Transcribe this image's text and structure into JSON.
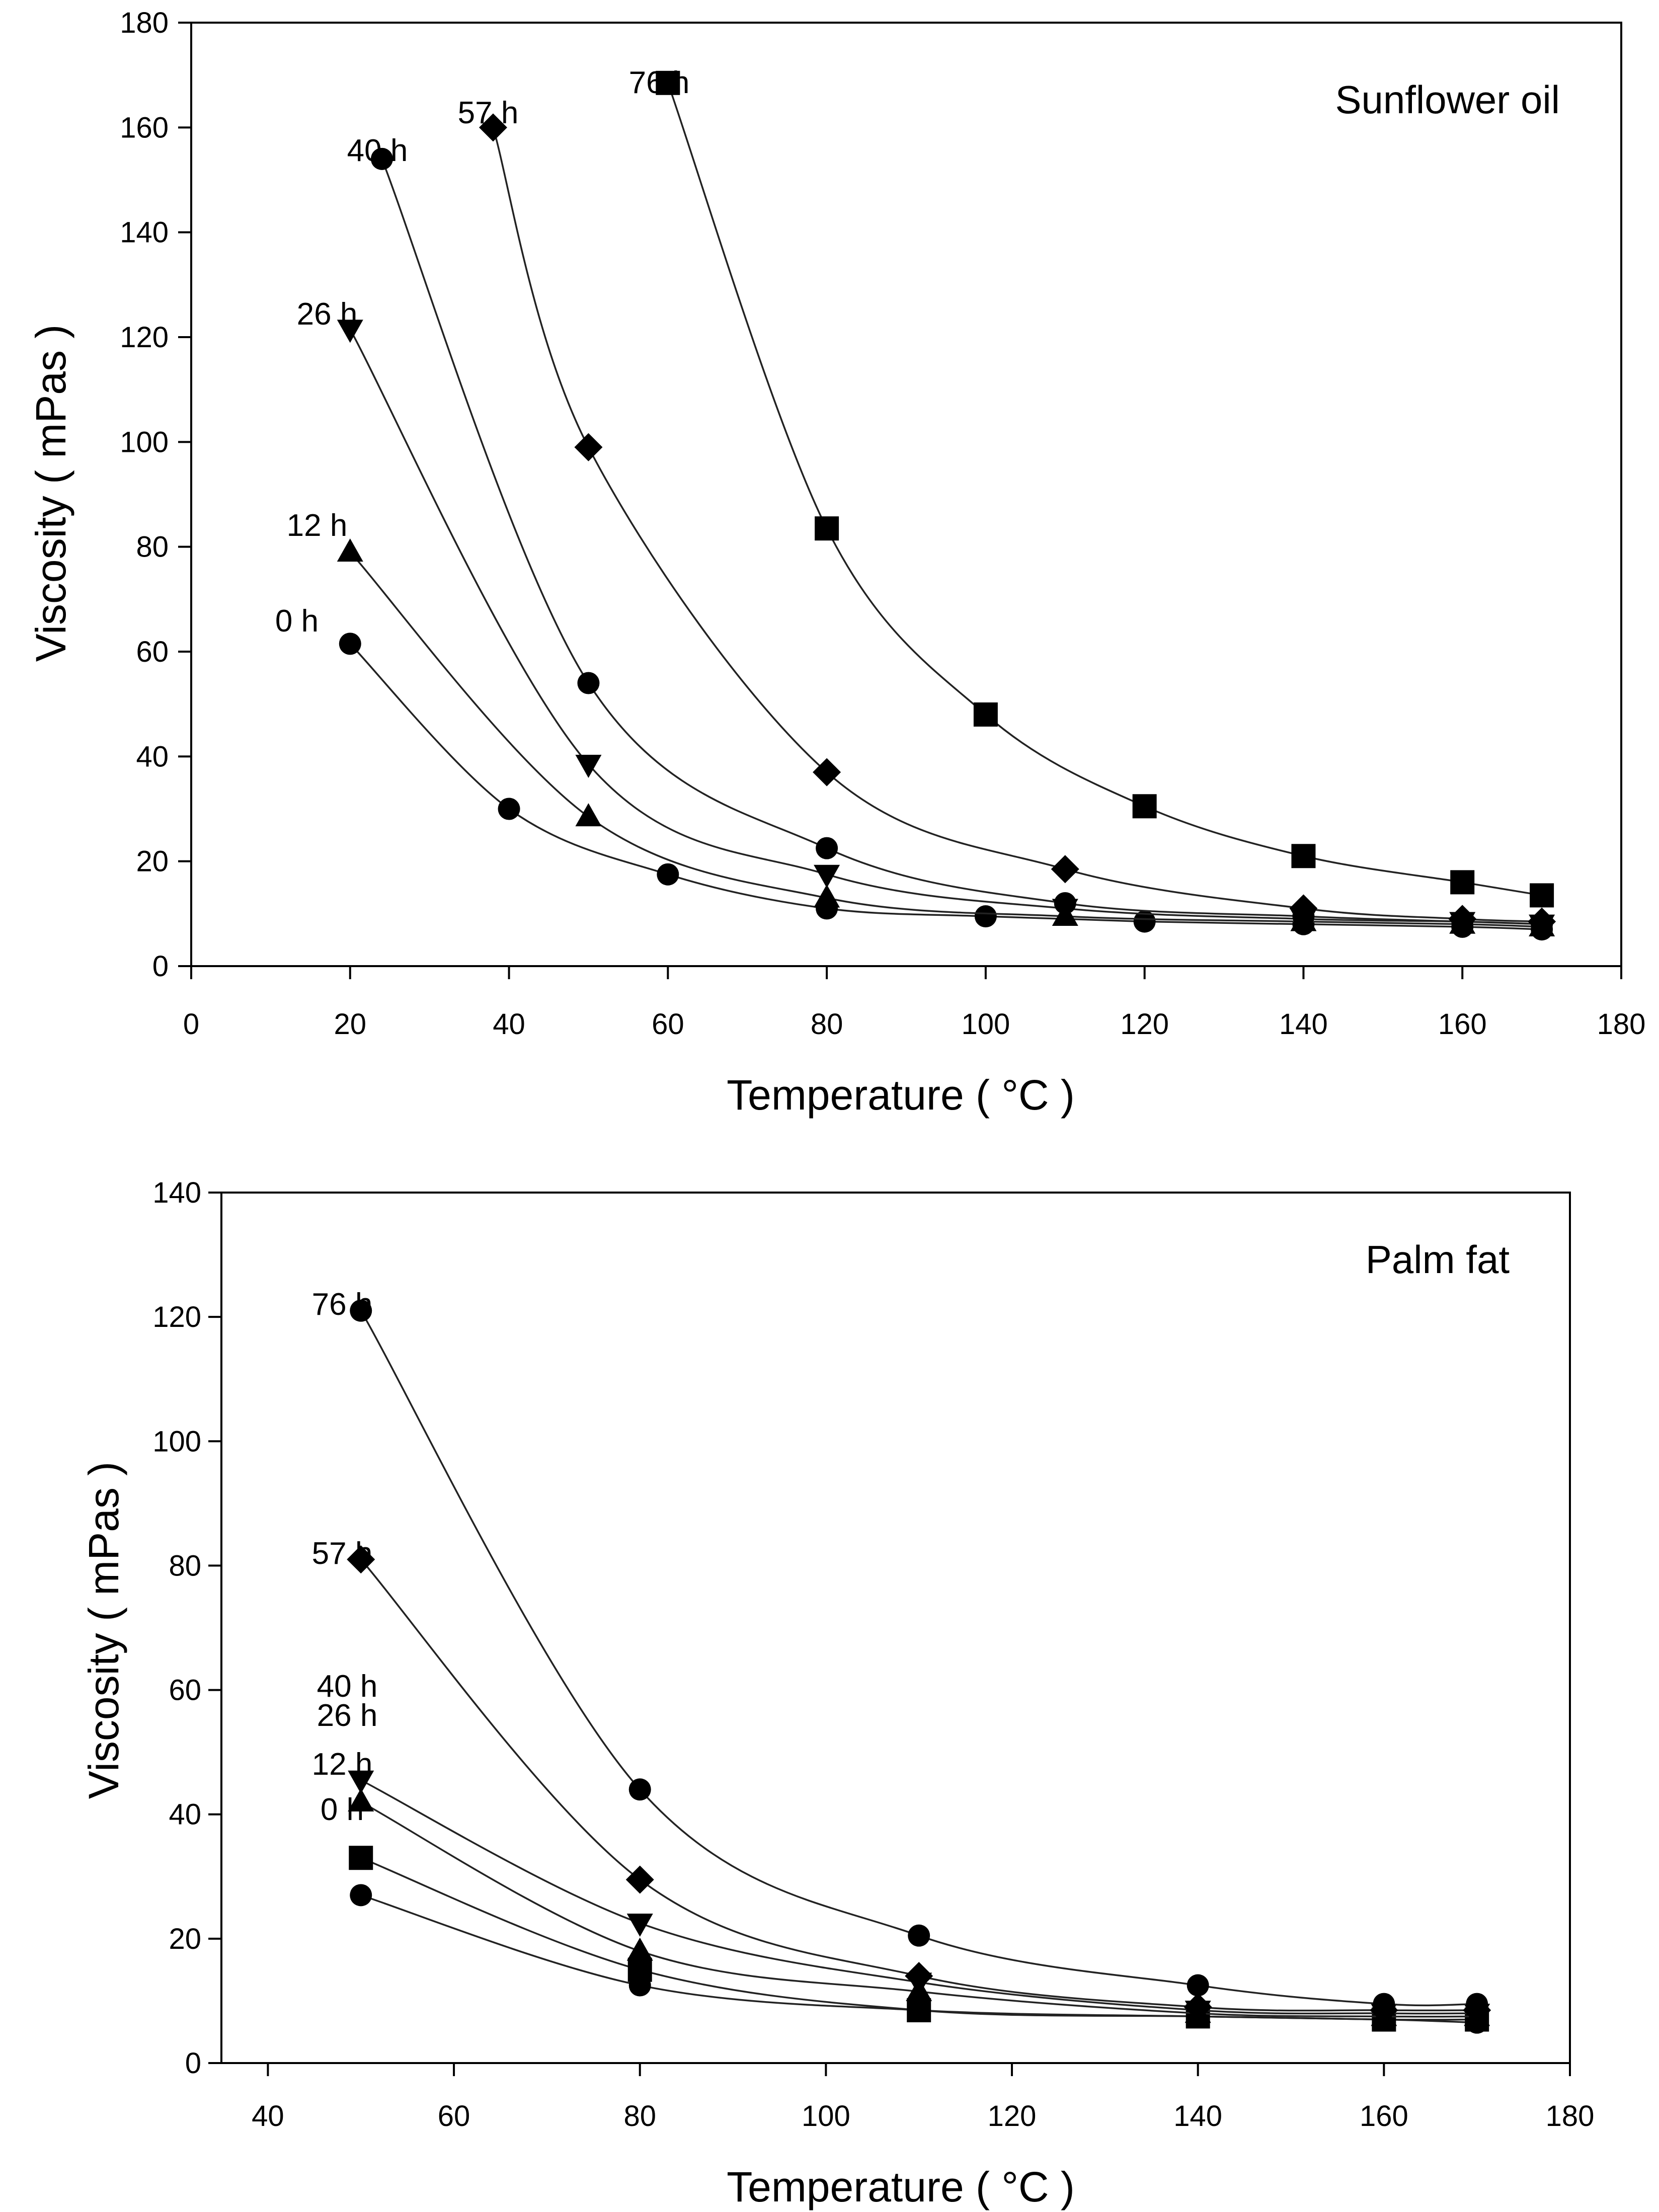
{
  "chart_data": [
    {
      "type": "line",
      "title": "Sunflower oil",
      "xlabel": "Temperature  ( °C )",
      "ylabel": "Viscosity  ( mPas )",
      "xlim": [
        0,
        180
      ],
      "ylim": [
        0,
        180
      ],
      "xticks": [
        0,
        20,
        40,
        60,
        80,
        100,
        120,
        140,
        160,
        180
      ],
      "yticks": [
        0,
        20,
        40,
        60,
        80,
        100,
        120,
        140,
        160,
        180
      ],
      "grid": false,
      "series": [
        {
          "name": "0 h",
          "marker": "circle",
          "x": [
            20,
            40,
            60,
            80,
            100,
            120,
            140,
            160,
            170
          ],
          "values": [
            61.5,
            30,
            17.5,
            11,
            9.5,
            8.5,
            8,
            7.5,
            7
          ]
        },
        {
          "name": "12 h",
          "marker": "triangle-up",
          "x": [
            20,
            50,
            80,
            110,
            140,
            160,
            170
          ],
          "values": [
            79,
            28.5,
            13,
            9.5,
            8.5,
            8,
            7.5
          ]
        },
        {
          "name": "26 h",
          "marker": "triangle-down",
          "x": [
            20,
            50,
            80,
            110,
            140,
            160,
            170
          ],
          "values": [
            121.5,
            38.5,
            17.5,
            11,
            9,
            8.5,
            8
          ]
        },
        {
          "name": "40 h",
          "marker": "circle",
          "x": [
            24,
            50,
            80,
            110,
            140,
            160,
            170
          ],
          "values": [
            154,
            54,
            22.5,
            12,
            9.5,
            8.5,
            8
          ]
        },
        {
          "name": "57 h",
          "marker": "diamond",
          "x": [
            38,
            50,
            80,
            110,
            140,
            160,
            170
          ],
          "values": [
            160,
            99,
            37,
            18.5,
            11,
            9,
            8.5
          ]
        },
        {
          "name": "76 h",
          "marker": "square",
          "x": [
            60,
            80,
            100,
            120,
            140,
            160,
            170
          ],
          "values": [
            168.5,
            83.5,
            48,
            30.5,
            21,
            16,
            13.5
          ]
        }
      ]
    },
    {
      "type": "line",
      "title": "Palm fat",
      "xlabel": "Temperature  ( °C )",
      "ylabel": "Viscosity  ( mPas )",
      "xlim": [
        35,
        180
      ],
      "ylim": [
        0,
        140
      ],
      "xticks": [
        40,
        60,
        80,
        100,
        120,
        140,
        160,
        180
      ],
      "yticks": [
        0,
        20,
        40,
        60,
        80,
        100,
        120,
        140
      ],
      "grid": false,
      "series": [
        {
          "name": "0 h",
          "marker": "circle",
          "x": [
            50,
            80,
            110,
            140,
            160,
            170
          ],
          "values": [
            27,
            12.5,
            8.5,
            7.5,
            7,
            6.5
          ]
        },
        {
          "name": "12 h",
          "marker": "square",
          "x": [
            50,
            80,
            110,
            140,
            160,
            170
          ],
          "values": [
            33,
            15,
            8.5,
            7.5,
            7,
            7
          ]
        },
        {
          "name": "26 h",
          "marker": "triangle-up",
          "x": [
            50,
            80,
            110,
            140,
            160,
            170
          ],
          "values": [
            42,
            18,
            11.5,
            8,
            7.5,
            7.5
          ]
        },
        {
          "name": "40 h",
          "marker": "triangle-down",
          "x": [
            50,
            80,
            110,
            140,
            160,
            170
          ],
          "values": [
            45.5,
            22.5,
            13,
            8.5,
            8,
            8
          ]
        },
        {
          "name": "57 h",
          "marker": "diamond",
          "x": [
            50,
            80,
            110,
            140,
            160,
            170
          ],
          "values": [
            81,
            29.5,
            14,
            9,
            8.5,
            8.5
          ]
        },
        {
          "name": "76 h",
          "marker": "circle",
          "x": [
            50,
            80,
            110,
            140,
            160,
            170
          ],
          "values": [
            121,
            44,
            20.5,
            12.5,
            9.5,
            9.5
          ]
        }
      ]
    }
  ]
}
